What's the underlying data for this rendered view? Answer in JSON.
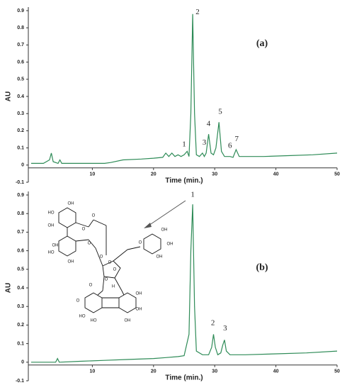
{
  "chart_data": [
    {
      "type": "line",
      "panel_label": "(a)",
      "x_label": "Time (min.)",
      "y_label": "AU",
      "x": [
        0,
        2,
        3,
        3.3,
        3.6,
        4.4,
        4.7,
        5,
        7,
        10,
        12,
        13,
        15,
        18,
        20,
        21.5,
        22,
        22.5,
        23,
        23.5,
        24,
        24.5,
        25,
        25.5,
        25.8,
        26.1,
        26.4,
        26.7,
        27,
        27.5,
        28,
        28.3,
        28.6,
        29,
        29.4,
        29.8,
        30.2,
        30.7,
        31.1,
        31.6,
        32,
        32.5,
        33,
        33.5,
        34,
        35,
        38,
        42,
        46,
        50
      ],
      "series": [
        {
          "color": "#2e8b57",
          "values": [
            0.01,
            0.01,
            0.03,
            0.07,
            0.02,
            0.01,
            0.03,
            0.01,
            0.01,
            0.01,
            0.01,
            0.015,
            0.03,
            0.035,
            0.04,
            0.045,
            0.07,
            0.05,
            0.07,
            0.05,
            0.06,
            0.05,
            0.06,
            0.08,
            0.05,
            0.3,
            0.88,
            0.3,
            0.06,
            0.05,
            0.07,
            0.05,
            0.07,
            0.18,
            0.07,
            0.06,
            0.1,
            0.25,
            0.08,
            0.05,
            0.05,
            0.05,
            0.045,
            0.09,
            0.05,
            0.05,
            0.05,
            0.055,
            0.06,
            0.07
          ]
        }
      ],
      "xlim": [
        0,
        50
      ],
      "ylim": [
        -0.1,
        0.9
      ],
      "xticks": [
        10,
        20,
        30,
        40,
        50
      ],
      "yticks": [
        -0.1,
        0,
        0.1,
        0.2,
        0.3,
        0.4,
        0.5,
        0.6,
        0.7,
        0.8,
        0.9
      ],
      "annotations": [
        {
          "text": "1",
          "x": 25,
          "y": 0.12
        },
        {
          "text": "2",
          "x": 27.2,
          "y": 0.89
        },
        {
          "text": "3",
          "x": 28.3,
          "y": 0.13
        },
        {
          "text": "4",
          "x": 29,
          "y": 0.24
        },
        {
          "text": "5",
          "x": 30.9,
          "y": 0.31
        },
        {
          "text": "6",
          "x": 32.5,
          "y": 0.11
        },
        {
          "text": "7",
          "x": 33.6,
          "y": 0.15
        }
      ]
    },
    {
      "type": "line",
      "panel_label": "(b)",
      "x_label": "Time (min.)",
      "y_label": "AU",
      "x": [
        0,
        4,
        4.3,
        4.6,
        8,
        12,
        16,
        20,
        22,
        24,
        25,
        25.8,
        26.1,
        26.4,
        26.7,
        27,
        28,
        29,
        29.5,
        29.8,
        30.1,
        30.5,
        31,
        31.3,
        31.6,
        31.9,
        32.5,
        35,
        40,
        45,
        50
      ],
      "series": [
        {
          "color": "#2e8b57",
          "values": [
            0,
            0,
            0.02,
            0,
            0.005,
            0.01,
            0.015,
            0.02,
            0.025,
            0.03,
            0.035,
            0.15,
            0.6,
            0.85,
            0.3,
            0.06,
            0.04,
            0.04,
            0.08,
            0.15,
            0.08,
            0.04,
            0.05,
            0.09,
            0.12,
            0.06,
            0.04,
            0.04,
            0.045,
            0.05,
            0.06
          ]
        }
      ],
      "xlim": [
        0,
        50
      ],
      "ylim": [
        -0.1,
        0.9
      ],
      "xticks": [
        10,
        20,
        30,
        40,
        50
      ],
      "yticks": [
        -0.1,
        0,
        0.1,
        0.2,
        0.3,
        0.4,
        0.5,
        0.6,
        0.7,
        0.8,
        0.9
      ],
      "annotations": [
        {
          "text": "1",
          "x": 26.4,
          "y": 0.9
        },
        {
          "text": "2",
          "x": 29.7,
          "y": 0.21
        },
        {
          "text": "3",
          "x": 31.7,
          "y": 0.18
        }
      ]
    }
  ],
  "structure": {
    "labels": [
      "OH",
      "HO",
      "OH",
      "O",
      "O",
      "HO",
      "OH",
      "OH",
      "O",
      "O",
      "O",
      "O",
      "OH",
      "OH",
      "OH",
      "O",
      "O",
      "H",
      "O",
      "HO",
      "HO",
      "OH",
      "OH",
      "OH",
      "O"
    ]
  }
}
